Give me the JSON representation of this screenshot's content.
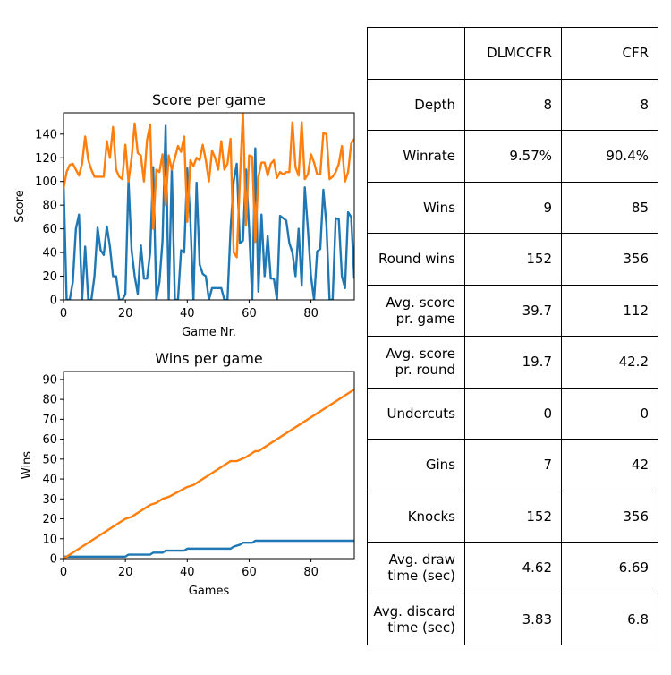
{
  "chart_data": [
    {
      "type": "line",
      "title": "Score per game",
      "xlabel": "Game Nr.",
      "ylabel": "Score",
      "xlim": [
        0,
        94
      ],
      "ylim": [
        0,
        158
      ],
      "xticks": [
        0,
        20,
        40,
        60,
        80
      ],
      "yticks": [
        0,
        20,
        40,
        60,
        80,
        100,
        120,
        140
      ],
      "grid": false,
      "series": [
        {
          "color": "#1f77b4",
          "values": [
            100,
            0,
            0,
            15,
            60,
            72,
            0,
            45,
            0,
            0,
            20,
            61,
            42,
            38,
            62,
            45,
            20,
            20,
            0,
            0,
            5,
            101,
            42,
            20,
            5,
            46,
            18,
            18,
            40,
            112,
            0,
            15,
            50,
            147,
            0,
            110,
            0,
            0,
            42,
            40,
            111,
            68,
            0,
            99,
            30,
            22,
            20,
            0,
            10,
            10,
            10,
            10,
            0,
            0,
            60,
            100,
            115,
            48,
            50,
            110,
            60,
            0,
            128,
            7,
            72,
            20,
            54,
            18,
            18,
            0,
            71,
            69,
            67,
            48,
            40,
            20,
            60,
            12,
            95,
            60,
            20,
            0,
            41,
            43,
            93,
            63,
            0,
            0,
            69,
            68,
            20,
            10,
            74,
            70,
            18
          ]
        },
        {
          "color": "#ff7f0e",
          "values": [
            94,
            108,
            114,
            115,
            110,
            105,
            115,
            138,
            118,
            110,
            104,
            104,
            104,
            104,
            134,
            120,
            146,
            110,
            104,
            102,
            131,
            100,
            120,
            149,
            124,
            122,
            100,
            135,
            148,
            60,
            110,
            108,
            123,
            80,
            122,
            110,
            120,
            130,
            125,
            138,
            66,
            118,
            113,
            120,
            118,
            131,
            118,
            100,
            126,
            120,
            110,
            134,
            110,
            115,
            136,
            40,
            36,
            100,
            159,
            63,
            122,
            121,
            49,
            104,
            116,
            116,
            105,
            115,
            118,
            103,
            108,
            106,
            108,
            108,
            150,
            112,
            105,
            150,
            102,
            106,
            123,
            116,
            106,
            106,
            141,
            140,
            102,
            104,
            108,
            115,
            130,
            100,
            108,
            132,
            136
          ]
        }
      ]
    },
    {
      "type": "line",
      "title": "Wins per game",
      "xlabel": "Games",
      "ylabel": "Wins",
      "xlim": [
        0,
        94
      ],
      "ylim": [
        0,
        94
      ],
      "xticks": [
        0,
        20,
        40,
        60,
        80
      ],
      "yticks": [
        0,
        10,
        20,
        30,
        40,
        50,
        60,
        70,
        80,
        90
      ],
      "grid": false,
      "series": [
        {
          "color": "#1f77b4",
          "points": [
            [
              0,
              1
            ],
            [
              20,
              1
            ],
            [
              21,
              2
            ],
            [
              28,
              2
            ],
            [
              29,
              3
            ],
            [
              32,
              3
            ],
            [
              33,
              4
            ],
            [
              39,
              4
            ],
            [
              40,
              5
            ],
            [
              54,
              5
            ],
            [
              55,
              6
            ],
            [
              57,
              7
            ],
            [
              58,
              8
            ],
            [
              61,
              8
            ],
            [
              62,
              9
            ],
            [
              94,
              9
            ]
          ]
        },
        {
          "color": "#ff7f0e",
          "points": [
            [
              0,
              0
            ],
            [
              20,
              20
            ],
            [
              22,
              21
            ],
            [
              28,
              27
            ],
            [
              30,
              28
            ],
            [
              32,
              30
            ],
            [
              34,
              31
            ],
            [
              40,
              36
            ],
            [
              42,
              37
            ],
            [
              54,
              49
            ],
            [
              56,
              49
            ],
            [
              59,
              51
            ],
            [
              60,
              52
            ],
            [
              61,
              53
            ],
            [
              62,
              54
            ],
            [
              63,
              54
            ],
            [
              94,
              85
            ]
          ]
        }
      ]
    }
  ],
  "table": {
    "columns": [
      "",
      "DLMCCFR",
      "CFR"
    ],
    "rows": [
      {
        "label": "Depth",
        "dlmccfr": "8",
        "cfr": "8"
      },
      {
        "label": "Winrate",
        "dlmccfr": "9.57%",
        "cfr": "90.4%"
      },
      {
        "label": "Wins",
        "dlmccfr": "9",
        "cfr": "85"
      },
      {
        "label": "Round wins",
        "dlmccfr": "152",
        "cfr": "356"
      },
      {
        "label": "Avg. score\npr. game",
        "dlmccfr": "39.7",
        "cfr": "112"
      },
      {
        "label": "Avg. score\npr. round",
        "dlmccfr": "19.7",
        "cfr": "42.2"
      },
      {
        "label": "Undercuts",
        "dlmccfr": "0",
        "cfr": "0"
      },
      {
        "label": "Gins",
        "dlmccfr": "7",
        "cfr": "42"
      },
      {
        "label": "Knocks",
        "dlmccfr": "152",
        "cfr": "356"
      },
      {
        "label": "Avg. draw\ntime (sec)",
        "dlmccfr": "4.62",
        "cfr": "6.69"
      },
      {
        "label": "Avg. discard\ntime (sec)",
        "dlmccfr": "3.83",
        "cfr": "6.8"
      }
    ]
  }
}
